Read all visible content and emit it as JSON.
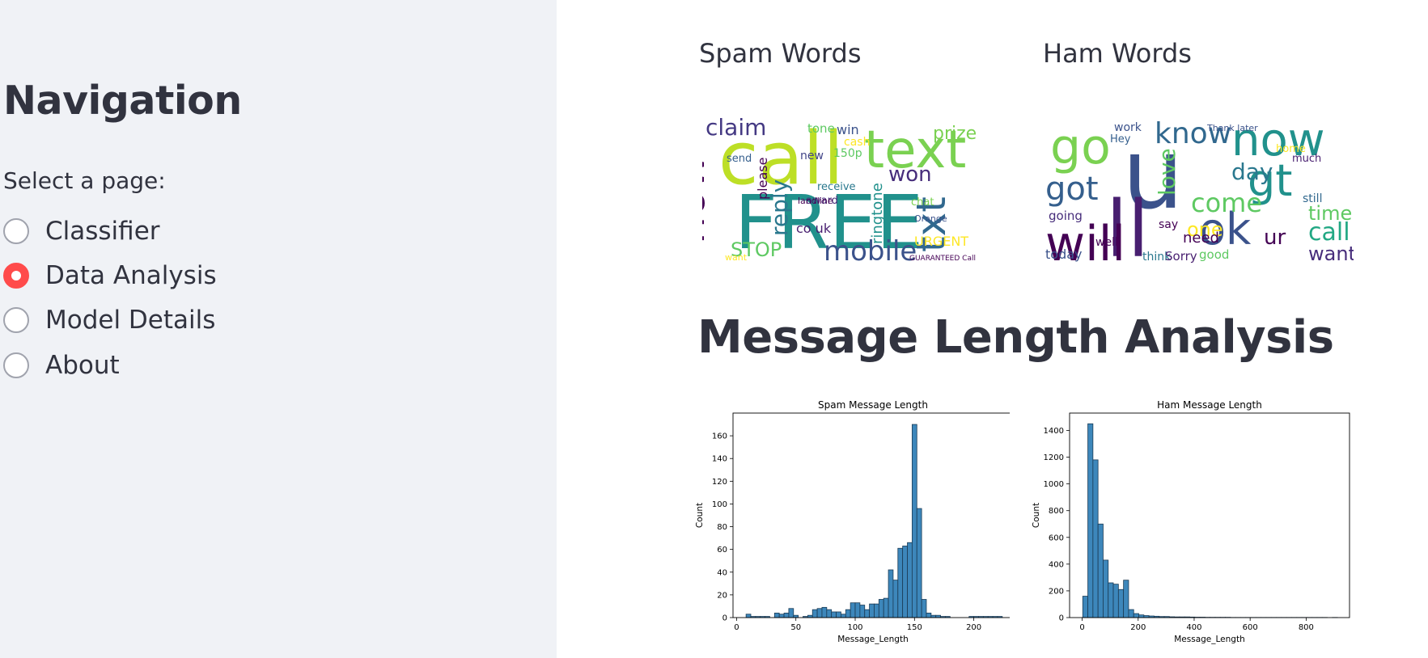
{
  "sidebar": {
    "title": "Navigation",
    "select_label": "Select a page:",
    "options": [
      {
        "label": "Classifier",
        "selected": false
      },
      {
        "label": "Data Analysis",
        "selected": true
      },
      {
        "label": "Model Details",
        "selected": false
      },
      {
        "label": "About",
        "selected": false
      }
    ]
  },
  "main": {
    "spam_words_title": "Spam Words",
    "ham_words_title": "Ham Words",
    "length_section_title": "Message Length Analysis"
  },
  "colors": {
    "accent": "#ff4b4b",
    "sidebar_bg": "#f0f2f6",
    "bar_fill": "#3d87bb",
    "bar_edge": "#1b3b55"
  },
  "spam_cloud_words": [
    {
      "text": "call",
      "size": 90,
      "color": "#bddf26"
    },
    {
      "text": "FREE",
      "size": 92,
      "color": "#21918c"
    },
    {
      "text": "text",
      "size": 64,
      "color": "#7ad151"
    },
    {
      "text": "now",
      "size": 54,
      "color": "#440154"
    },
    {
      "text": "mobile",
      "size": 34,
      "color": "#3b528b"
    },
    {
      "text": "txt",
      "size": 50,
      "color": "#31688e"
    },
    {
      "text": "claim",
      "size": 28,
      "color": "#443983"
    },
    {
      "text": "won",
      "size": 26,
      "color": "#472d7b"
    },
    {
      "text": "prize",
      "size": 22,
      "color": "#7ad151"
    },
    {
      "text": "STOP",
      "size": 24,
      "color": "#5ec962"
    },
    {
      "text": "reply",
      "size": 28,
      "color": "#2a788e"
    },
    {
      "text": "URGENT",
      "size": 16,
      "color": "#fde725"
    },
    {
      "text": "ringtone",
      "size": 18,
      "color": "#21918c"
    },
    {
      "text": "win",
      "size": 16,
      "color": "#3b528b"
    },
    {
      "text": "cash",
      "size": 14,
      "color": "#fde725"
    },
    {
      "text": "150p",
      "size": 14,
      "color": "#5ec962"
    },
    {
      "text": "please",
      "size": 16,
      "color": "#440154"
    },
    {
      "text": "award",
      "size": 13,
      "color": "#472d7b"
    },
    {
      "text": "new",
      "size": 14,
      "color": "#414487"
    },
    {
      "text": "tone",
      "size": 15,
      "color": "#5ec962"
    },
    {
      "text": "send",
      "size": 13,
      "color": "#355f8d"
    },
    {
      "text": "receive",
      "size": 13,
      "color": "#2a788e"
    },
    {
      "text": "chat",
      "size": 13,
      "color": "#7ad151"
    },
    {
      "text": "co uk",
      "size": 16,
      "color": "#481f70"
    },
    {
      "text": "landline",
      "size": 11,
      "color": "#440154"
    },
    {
      "text": "want",
      "size": 11,
      "color": "#fde725"
    },
    {
      "text": "Orange",
      "size": 11,
      "color": "#3b528b"
    },
    {
      "text": "GUARANTEED Call",
      "size": 9,
      "color": "#440154"
    }
  ],
  "ham_cloud_words": [
    {
      "text": "u",
      "size": 120,
      "color": "#3b528b"
    },
    {
      "text": "ll",
      "size": 96,
      "color": "#481f70"
    },
    {
      "text": "go",
      "size": 60,
      "color": "#7ad151"
    },
    {
      "text": "now",
      "size": 56,
      "color": "#21918c"
    },
    {
      "text": "will",
      "size": 60,
      "color": "#440154"
    },
    {
      "text": "ok",
      "size": 54,
      "color": "#3b528b"
    },
    {
      "text": "gt",
      "size": 54,
      "color": "#21918c"
    },
    {
      "text": "know",
      "size": 36,
      "color": "#31688e"
    },
    {
      "text": "got",
      "size": 40,
      "color": "#355f8d"
    },
    {
      "text": "come",
      "size": 32,
      "color": "#5ec962"
    },
    {
      "text": "day",
      "size": 28,
      "color": "#2a788e"
    },
    {
      "text": "love",
      "size": 28,
      "color": "#5ec962"
    },
    {
      "text": "call",
      "size": 30,
      "color": "#22a884"
    },
    {
      "text": "time",
      "size": 24,
      "color": "#5ec962"
    },
    {
      "text": "ur",
      "size": 26,
      "color": "#440154"
    },
    {
      "text": "one",
      "size": 24,
      "color": "#fde725"
    },
    {
      "text": "want",
      "size": 24,
      "color": "#472d7b"
    },
    {
      "text": "need",
      "size": 18,
      "color": "#440154"
    },
    {
      "text": "good",
      "size": 15,
      "color": "#5ec962"
    },
    {
      "text": "today",
      "size": 16,
      "color": "#3b528b"
    },
    {
      "text": "think",
      "size": 14,
      "color": "#2a788e"
    },
    {
      "text": "Sorry",
      "size": 15,
      "color": "#481f70"
    },
    {
      "text": "well",
      "size": 14,
      "color": "#440154"
    },
    {
      "text": "going",
      "size": 15,
      "color": "#472d7b"
    },
    {
      "text": "work",
      "size": 14,
      "color": "#3b528b"
    },
    {
      "text": "say",
      "size": 14,
      "color": "#440154"
    },
    {
      "text": "still",
      "size": 14,
      "color": "#31688e"
    },
    {
      "text": "Hey",
      "size": 13,
      "color": "#355f8d"
    },
    {
      "text": "much",
      "size": 13,
      "color": "#481f70"
    },
    {
      "text": "home",
      "size": 13,
      "color": "#fde725"
    },
    {
      "text": "Thank later",
      "size": 11,
      "color": "#3b528b"
    }
  ],
  "chart_data": [
    {
      "type": "bar",
      "title": "Spam Message Length",
      "xlabel": "Message_Length",
      "ylabel": "Count",
      "xlim": [
        -3,
        233
      ],
      "ylim": [
        0,
        180
      ],
      "xticks": [
        0,
        50,
        100,
        150,
        200
      ],
      "yticks": [
        0,
        20,
        40,
        60,
        80,
        100,
        120,
        140,
        160
      ],
      "bin_start": 0,
      "bin_width": 4,
      "values": [
        0,
        0,
        3,
        1,
        1,
        1,
        1,
        0,
        4,
        3,
        4,
        8,
        2,
        0,
        1,
        2,
        7,
        8,
        9,
        7,
        5,
        5,
        3,
        7,
        13,
        13,
        11,
        7,
        12,
        12,
        16,
        17,
        42,
        33,
        61,
        63,
        66,
        170,
        96,
        16,
        4,
        2,
        2,
        1,
        1,
        0,
        0,
        0,
        0,
        1,
        1,
        1,
        1,
        1,
        1,
        1
      ]
    },
    {
      "type": "bar",
      "title": "Ham Message Length",
      "xlabel": "Message_Length",
      "ylabel": "Count",
      "xlim": [
        -45,
        955
      ],
      "ylim": [
        0,
        1530
      ],
      "xticks": [
        0,
        200,
        400,
        600,
        800
      ],
      "yticks": [
        0,
        200,
        400,
        600,
        800,
        1000,
        1200,
        1400
      ],
      "bin_start": 2,
      "bin_width": 18.2,
      "values": [
        160,
        1450,
        1180,
        700,
        430,
        260,
        250,
        210,
        280,
        60,
        30,
        20,
        15,
        12,
        10,
        8,
        8,
        6,
        5,
        5,
        5,
        4,
        3,
        3,
        2,
        2,
        2,
        2,
        2,
        1,
        1,
        1,
        1,
        1,
        1,
        1,
        1,
        1,
        1,
        1,
        1,
        1,
        1,
        1,
        1,
        1,
        1,
        1,
        0,
        1
      ]
    }
  ]
}
